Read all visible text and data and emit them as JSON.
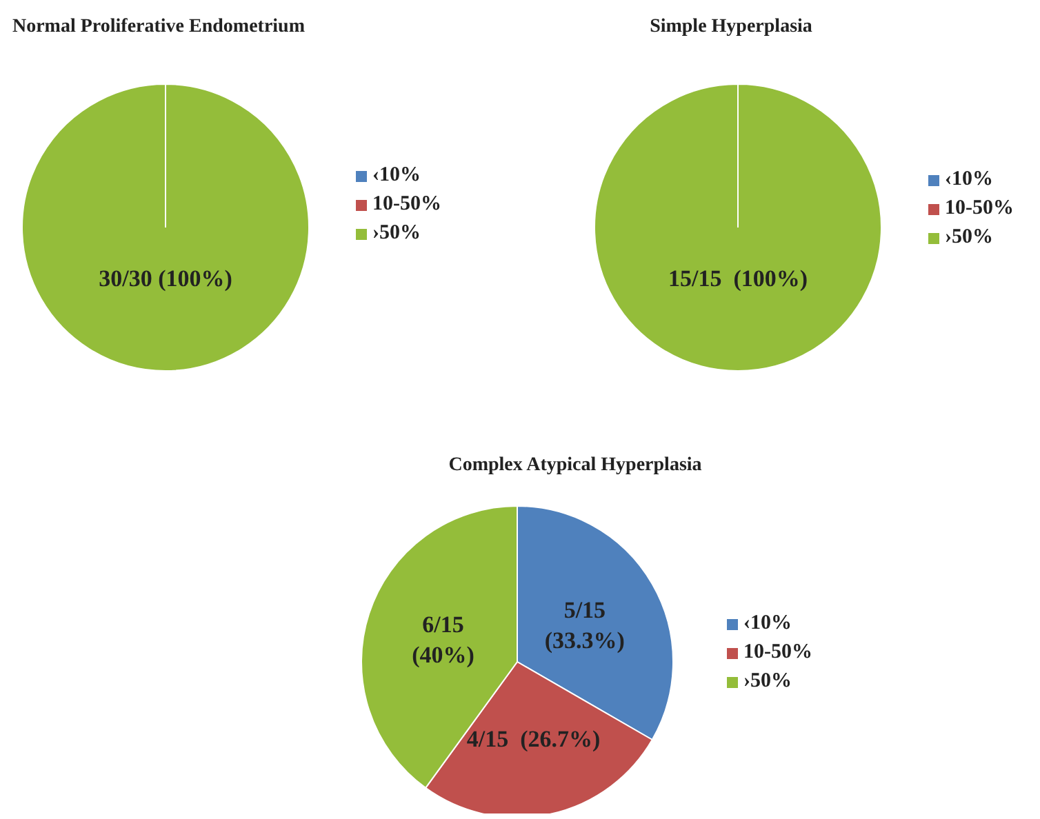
{
  "chart_data": [
    {
      "type": "pie",
      "title": "Normal Proliferative Endometrium",
      "categories": [
        "‹10%",
        "10-50%",
        "›50%"
      ],
      "values": [
        0,
        0,
        30
      ],
      "colors": [
        "#4f81bd",
        "#c0504d",
        "#94bd3a"
      ],
      "value_labels": [
        null,
        null,
        "30/30 (100%)"
      ],
      "legend": "right"
    },
    {
      "type": "pie",
      "title": "Simple Hyperplasia",
      "categories": [
        "‹10%",
        "10-50%",
        "›50%"
      ],
      "values": [
        0,
        0,
        15
      ],
      "colors": [
        "#4f81bd",
        "#c0504d",
        "#94bd3a"
      ],
      "value_labels": [
        null,
        null,
        "15/15  (100%)"
      ],
      "legend": "right"
    },
    {
      "type": "pie",
      "title": "Complex Atypical Hyperplasia",
      "categories": [
        "‹10%",
        "10-50%",
        "›50%"
      ],
      "values": [
        5,
        4,
        6
      ],
      "colors": [
        "#4f81bd",
        "#c0504d",
        "#94bd3a"
      ],
      "value_labels": [
        "5/15 (33.3%)",
        "4/15  (26.7%)",
        "6/15 (40%)"
      ],
      "legend": "right"
    }
  ]
}
